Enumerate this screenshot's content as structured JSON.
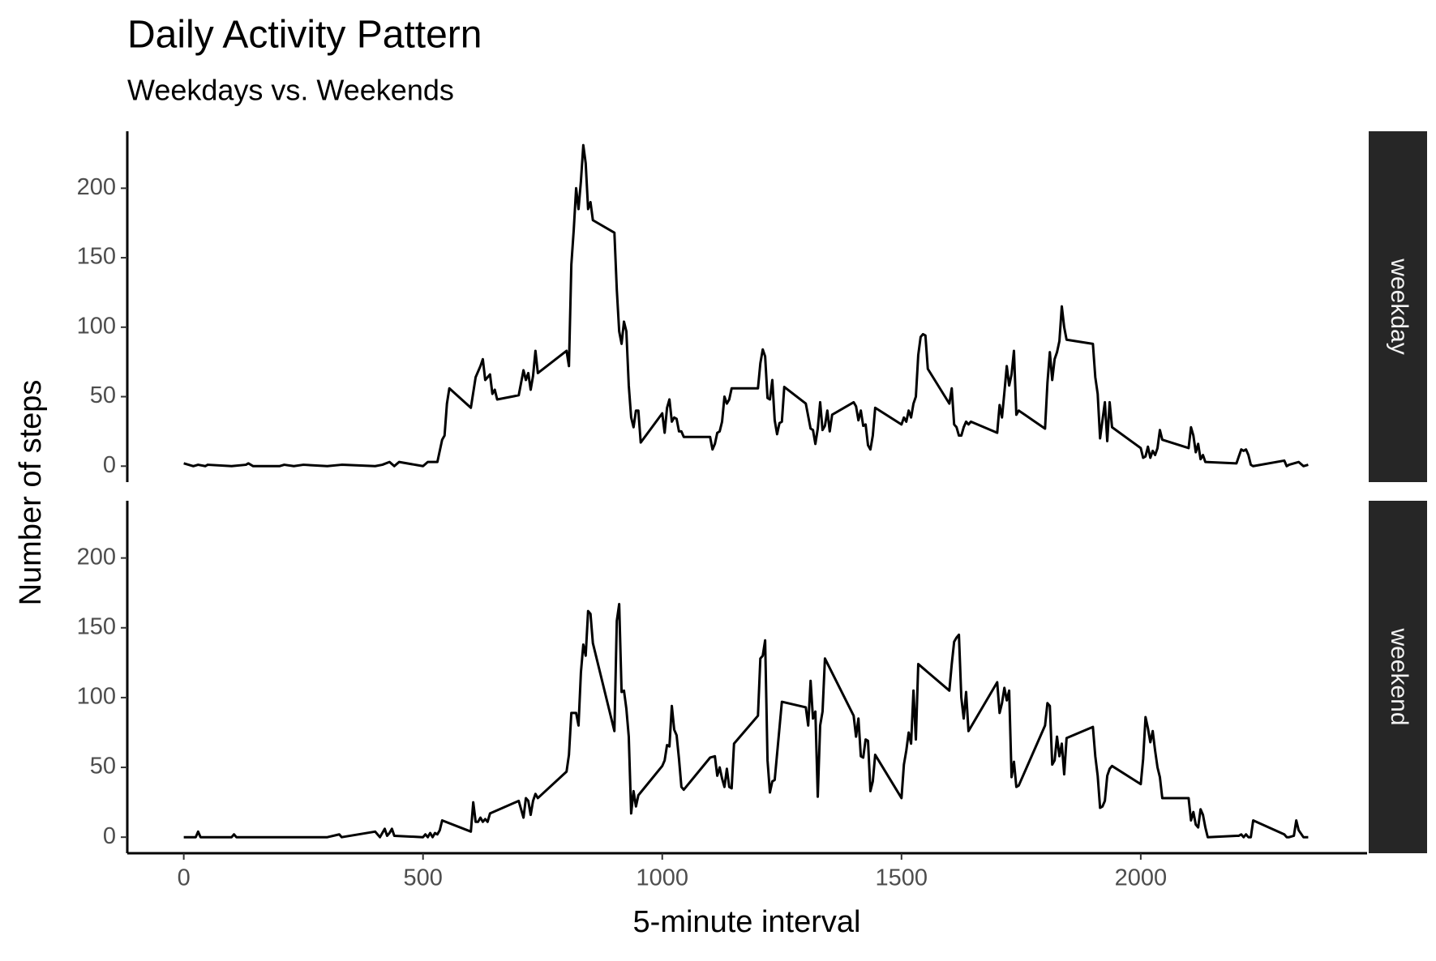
{
  "chart_data": {
    "type": "line",
    "title": "Daily Activity Pattern",
    "subtitle": "Weekdays vs. Weekends",
    "xlabel": "5-minute interval",
    "ylabel": "Number of steps",
    "xlim": [
      -118,
      2473
    ],
    "xticks": [
      0,
      500,
      1000,
      1500,
      2000
    ],
    "ylim": [
      -11.5,
      241
    ],
    "yticks": [
      0,
      50,
      100,
      150,
      200
    ],
    "series": [
      {
        "name": "weekday",
        "color": "#000000",
        "x": [
          0,
          10,
          20,
          30,
          45,
          50,
          100,
          130,
          135,
          145,
          200,
          210,
          230,
          250,
          300,
          330,
          400,
          415,
          430,
          440,
          450,
          500,
          510,
          520,
          530,
          540,
          545,
          550,
          555,
          600,
          610,
          620,
          625,
          630,
          640,
          645,
          650,
          655,
          700,
          705,
          710,
          715,
          720,
          725,
          730,
          735,
          740,
          800,
          805,
          810,
          815,
          820,
          825,
          830,
          835,
          840,
          845,
          850,
          855,
          900,
          905,
          910,
          915,
          920,
          925,
          930,
          935,
          940,
          945,
          950,
          955,
          1000,
          1005,
          1010,
          1015,
          1020,
          1025,
          1030,
          1035,
          1040,
          1045,
          1100,
          1105,
          1110,
          1115,
          1120,
          1125,
          1130,
          1135,
          1140,
          1145,
          1200,
          1205,
          1210,
          1215,
          1220,
          1225,
          1230,
          1235,
          1240,
          1245,
          1250,
          1255,
          1300,
          1310,
          1315,
          1320,
          1325,
          1330,
          1335,
          1340,
          1345,
          1350,
          1355,
          1400,
          1405,
          1410,
          1415,
          1420,
          1425,
          1430,
          1435,
          1440,
          1445,
          1500,
          1505,
          1510,
          1515,
          1520,
          1525,
          1530,
          1535,
          1540,
          1545,
          1550,
          1555,
          1600,
          1605,
          1610,
          1615,
          1620,
          1625,
          1630,
          1635,
          1640,
          1645,
          1700,
          1705,
          1710,
          1715,
          1720,
          1725,
          1730,
          1735,
          1740,
          1745,
          1800,
          1805,
          1810,
          1815,
          1820,
          1825,
          1830,
          1835,
          1840,
          1845,
          1900,
          1905,
          1910,
          1915,
          1920,
          1925,
          1930,
          1935,
          1940,
          2000,
          2005,
          2010,
          2015,
          2020,
          2025,
          2030,
          2035,
          2040,
          2045,
          2100,
          2105,
          2110,
          2115,
          2120,
          2125,
          2130,
          2135,
          2200,
          2205,
          2210,
          2215,
          2220,
          2225,
          2230,
          2235,
          2300,
          2305,
          2310,
          2330,
          2340,
          2350
        ],
        "values": [
          2,
          1,
          0,
          1,
          0,
          1,
          0,
          1,
          2,
          0,
          0,
          1,
          0,
          1,
          0,
          1,
          0,
          1,
          3,
          0,
          3,
          0,
          3,
          3,
          3,
          19,
          22,
          45,
          56,
          42,
          64,
          72,
          77,
          62,
          66,
          52,
          55,
          48,
          51,
          60,
          69,
          62,
          67,
          55,
          65,
          83,
          67,
          83,
          72,
          145,
          170,
          200,
          185,
          205,
          231,
          218,
          185,
          190,
          177,
          168,
          127,
          97,
          88,
          104,
          97,
          58,
          35,
          28,
          40,
          40,
          17,
          38,
          24,
          42,
          48,
          32,
          35,
          34,
          25,
          25,
          21,
          21,
          12,
          16,
          24,
          25,
          32,
          50,
          45,
          48,
          56,
          56,
          74,
          84,
          79,
          49,
          48,
          62,
          33,
          23,
          31,
          32,
          57,
          45,
          27,
          26,
          16,
          27,
          46,
          26,
          29,
          40,
          25,
          37,
          46,
          43,
          33,
          40,
          29,
          30,
          15,
          12,
          22,
          42,
          30,
          35,
          32,
          40,
          35,
          45,
          50,
          80,
          93,
          95,
          94,
          70,
          45,
          56,
          30,
          28,
          22,
          22,
          28,
          32,
          30,
          32,
          24,
          44,
          35,
          53,
          72,
          58,
          66,
          83,
          37,
          40,
          27,
          60,
          82,
          62,
          77,
          82,
          90,
          115,
          100,
          91,
          88,
          64,
          52,
          20,
          33,
          46,
          18,
          46,
          28,
          13,
          6,
          7,
          14,
          6,
          11,
          8,
          13,
          26,
          19,
          13,
          28,
          22,
          10,
          16,
          5,
          8,
          3,
          2,
          7,
          12,
          11,
          12,
          8,
          1,
          0,
          4,
          0,
          1,
          3,
          0,
          1
        ]
      },
      {
        "name": "weekend",
        "color": "#000000",
        "x": [
          0,
          25,
          30,
          35,
          100,
          105,
          110,
          200,
          300,
          325,
          330,
          400,
          410,
          415,
          420,
          425,
          430,
          435,
          440,
          500,
          505,
          510,
          515,
          520,
          525,
          530,
          535,
          540,
          600,
          605,
          610,
          615,
          620,
          625,
          630,
          635,
          640,
          700,
          705,
          710,
          715,
          720,
          725,
          730,
          735,
          740,
          800,
          805,
          810,
          815,
          820,
          825,
          830,
          835,
          840,
          845,
          850,
          855,
          900,
          905,
          910,
          915,
          920,
          925,
          930,
          935,
          940,
          945,
          950,
          1000,
          1005,
          1010,
          1015,
          1020,
          1025,
          1030,
          1035,
          1040,
          1045,
          1100,
          1110,
          1115,
          1120,
          1125,
          1130,
          1135,
          1140,
          1145,
          1150,
          1200,
          1205,
          1210,
          1215,
          1220,
          1225,
          1230,
          1235,
          1250,
          1300,
          1305,
          1310,
          1315,
          1320,
          1325,
          1330,
          1335,
          1340,
          1400,
          1405,
          1410,
          1415,
          1420,
          1425,
          1430,
          1435,
          1440,
          1445,
          1500,
          1505,
          1510,
          1515,
          1520,
          1525,
          1530,
          1535,
          1600,
          1605,
          1610,
          1615,
          1620,
          1625,
          1630,
          1635,
          1640,
          1700,
          1705,
          1710,
          1715,
          1720,
          1725,
          1730,
          1735,
          1740,
          1745,
          1800,
          1805,
          1810,
          1815,
          1820,
          1825,
          1830,
          1835,
          1840,
          1845,
          1900,
          1905,
          1910,
          1915,
          1920,
          1925,
          1930,
          1935,
          1940,
          2000,
          2005,
          2010,
          2015,
          2020,
          2025,
          2030,
          2035,
          2040,
          2045,
          2100,
          2105,
          2110,
          2115,
          2120,
          2125,
          2130,
          2135,
          2140,
          2200,
          2205,
          2210,
          2215,
          2220,
          2225,
          2230,
          2235,
          2300,
          2305,
          2310,
          2320,
          2325,
          2330,
          2340,
          2350
        ],
        "values": [
          0,
          0,
          4,
          0,
          0,
          2,
          0,
          0,
          0,
          2,
          0,
          4,
          0,
          3,
          6,
          1,
          3,
          6,
          1,
          0,
          2,
          0,
          3,
          0,
          3,
          2,
          5,
          12,
          4,
          25,
          11,
          11,
          14,
          11,
          13,
          11,
          17,
          26,
          20,
          14,
          28,
          26,
          16,
          26,
          31,
          28,
          47,
          59,
          89,
          89,
          89,
          80,
          118,
          138,
          130,
          162,
          160,
          139,
          76,
          155,
          167,
          104,
          105,
          92,
          72,
          17,
          33,
          22,
          30,
          51,
          55,
          66,
          65,
          94,
          77,
          73,
          56,
          36,
          34,
          57,
          58,
          44,
          50,
          42,
          36,
          49,
          36,
          35,
          67,
          87,
          128,
          130,
          141,
          55,
          32,
          40,
          41,
          97,
          93,
          80,
          112,
          85,
          90,
          29,
          80,
          90,
          128,
          87,
          72,
          85,
          58,
          57,
          70,
          69,
          33,
          40,
          59,
          28,
          52,
          62,
          75,
          67,
          105,
          70,
          124,
          105,
          124,
          140,
          143,
          145,
          100,
          85,
          104,
          76,
          111,
          89,
          96,
          107,
          98,
          105,
          43,
          54,
          36,
          37,
          80,
          96,
          94,
          52,
          55,
          72,
          58,
          67,
          45,
          71,
          79,
          58,
          44,
          21,
          22,
          26,
          44,
          49,
          51,
          38,
          56,
          86,
          78,
          68,
          76,
          62,
          50,
          43,
          28,
          28,
          12,
          18,
          9,
          7,
          20,
          16,
          7,
          0,
          1,
          1,
          2,
          0,
          2,
          0,
          0,
          12,
          2,
          0,
          0,
          1,
          12,
          5,
          0,
          0
        ]
      }
    ]
  }
}
